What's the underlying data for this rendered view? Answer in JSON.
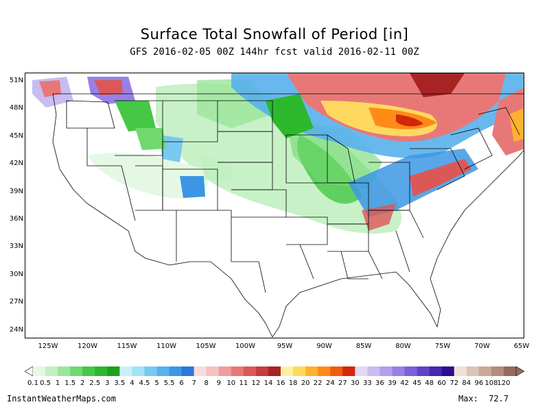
{
  "title": "Surface Total Snowfall of Period [in]",
  "subtitle": "GFS 2016-02-05 00Z 144hr fcst valid 2016-02-11 00Z",
  "lat_labels": [
    "51N",
    "48N",
    "45N",
    "42N",
    "39N",
    "36N",
    "33N",
    "30N",
    "27N",
    "24N"
  ],
  "lon_labels": [
    "125W",
    "120W",
    "115W",
    "110W",
    "105W",
    "100W",
    "95W",
    "90W",
    "85W",
    "80W",
    "75W",
    "70W",
    "65W"
  ],
  "colorbar": {
    "labels": [
      "0.1",
      "0.5",
      "1",
      "1.5",
      "2",
      "2.5",
      "3",
      "3.5",
      "4",
      "4.5",
      "5",
      "5.5",
      "6",
      "7",
      "8",
      "9",
      "10",
      "11",
      "12",
      "14",
      "16",
      "18",
      "20",
      "22",
      "24",
      "27",
      "30",
      "33",
      "36",
      "39",
      "42",
      "45",
      "48",
      "60",
      "72",
      "84",
      "96",
      "108",
      "120"
    ],
    "colors": [
      "#e4f8e4",
      "#c2f0c2",
      "#9be69b",
      "#6fd86f",
      "#45c845",
      "#2db82d",
      "#1f9f1f",
      "#c8f0f8",
      "#a0e4f4",
      "#78c8f0",
      "#58b0ec",
      "#3c96e4",
      "#2c78d8",
      "#fadcdc",
      "#f6c0c0",
      "#f09c9c",
      "#e87878",
      "#dc5858",
      "#c83c3c",
      "#a82424",
      "#fff0a0",
      "#ffd860",
      "#ffb030",
      "#ff8a18",
      "#f05c10",
      "#d02808",
      "#e0d8f4",
      "#c8bcf0",
      "#b0a0ec",
      "#9880e4",
      "#7c60d8",
      "#6044c8",
      "#4428b0",
      "#300c90",
      "#f0e0d8",
      "#dcc4b8",
      "#c8a898",
      "#b48c7c",
      "#946c5c"
    ]
  },
  "footer": {
    "source": "InstantWeatherMaps.com",
    "max_label": "Max:",
    "max_value": "72.7"
  }
}
